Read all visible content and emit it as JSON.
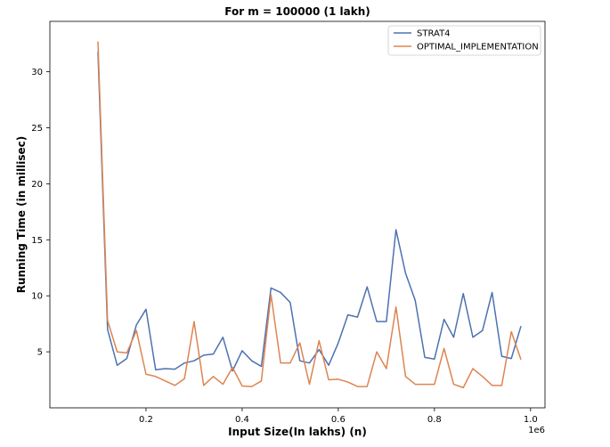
{
  "chart_data": {
    "type": "line",
    "title": "For m = 100000 (1 lakh)",
    "xlabel": "Input Size(In lakhs) (n)",
    "ylabel": "Running Time (in millisec)",
    "x_offset_label": "1e6",
    "xlim": [
      0.0,
      1.03
    ],
    "ylim": [
      0.0,
      34.5
    ],
    "xticks": [
      0.2,
      0.4,
      0.6,
      0.8,
      1.0
    ],
    "xtick_labels": [
      "0.2",
      "0.4",
      "0.6",
      "0.8",
      "1.0"
    ],
    "yticks": [
      5,
      10,
      15,
      20,
      25,
      30
    ],
    "ytick_labels": [
      "5",
      "10",
      "15",
      "20",
      "25",
      "30"
    ],
    "grid": false,
    "legend_position": "top-right",
    "x": [
      0.1,
      0.12,
      0.14,
      0.16,
      0.18,
      0.2,
      0.22,
      0.24,
      0.26,
      0.28,
      0.3,
      0.32,
      0.34,
      0.36,
      0.38,
      0.4,
      0.42,
      0.44,
      0.46,
      0.48,
      0.5,
      0.52,
      0.54,
      0.56,
      0.58,
      0.6,
      0.62,
      0.64,
      0.66,
      0.68,
      0.7,
      0.72,
      0.74,
      0.76,
      0.78,
      0.8,
      0.82,
      0.84,
      0.86,
      0.88,
      0.9,
      0.92,
      0.94,
      0.96,
      0.98
    ],
    "series": [
      {
        "name": "STRAT4",
        "color": "#4c72b0",
        "values": [
          31.8,
          7.0,
          3.8,
          4.4,
          7.4,
          8.8,
          3.4,
          3.5,
          3.45,
          4.0,
          4.2,
          4.7,
          4.8,
          6.3,
          3.3,
          5.1,
          4.2,
          3.7,
          10.7,
          10.3,
          9.4,
          4.2,
          4.0,
          5.2,
          3.8,
          5.8,
          8.3,
          8.1,
          10.8,
          7.7,
          7.7,
          15.9,
          12.0,
          9.6,
          4.5,
          4.35,
          7.9,
          6.3,
          10.2,
          6.3,
          6.9,
          10.3,
          4.6,
          4.4,
          7.3
        ]
      },
      {
        "name": "OPTIMAL_IMPLEMENTATION",
        "color": "#dd8452",
        "values": [
          32.7,
          7.8,
          5.0,
          4.9,
          6.9,
          3.0,
          2.8,
          2.4,
          2.0,
          2.6,
          7.7,
          2.0,
          2.8,
          2.1,
          3.6,
          1.95,
          1.9,
          2.4,
          10.1,
          4.0,
          4.0,
          5.8,
          2.1,
          6.0,
          2.5,
          2.55,
          2.3,
          1.9,
          1.9,
          5.0,
          3.5,
          9.0,
          2.8,
          2.1,
          2.1,
          2.1,
          5.3,
          2.1,
          1.8,
          3.5,
          2.8,
          2.0,
          2.0,
          6.8,
          4.3
        ]
      }
    ]
  }
}
